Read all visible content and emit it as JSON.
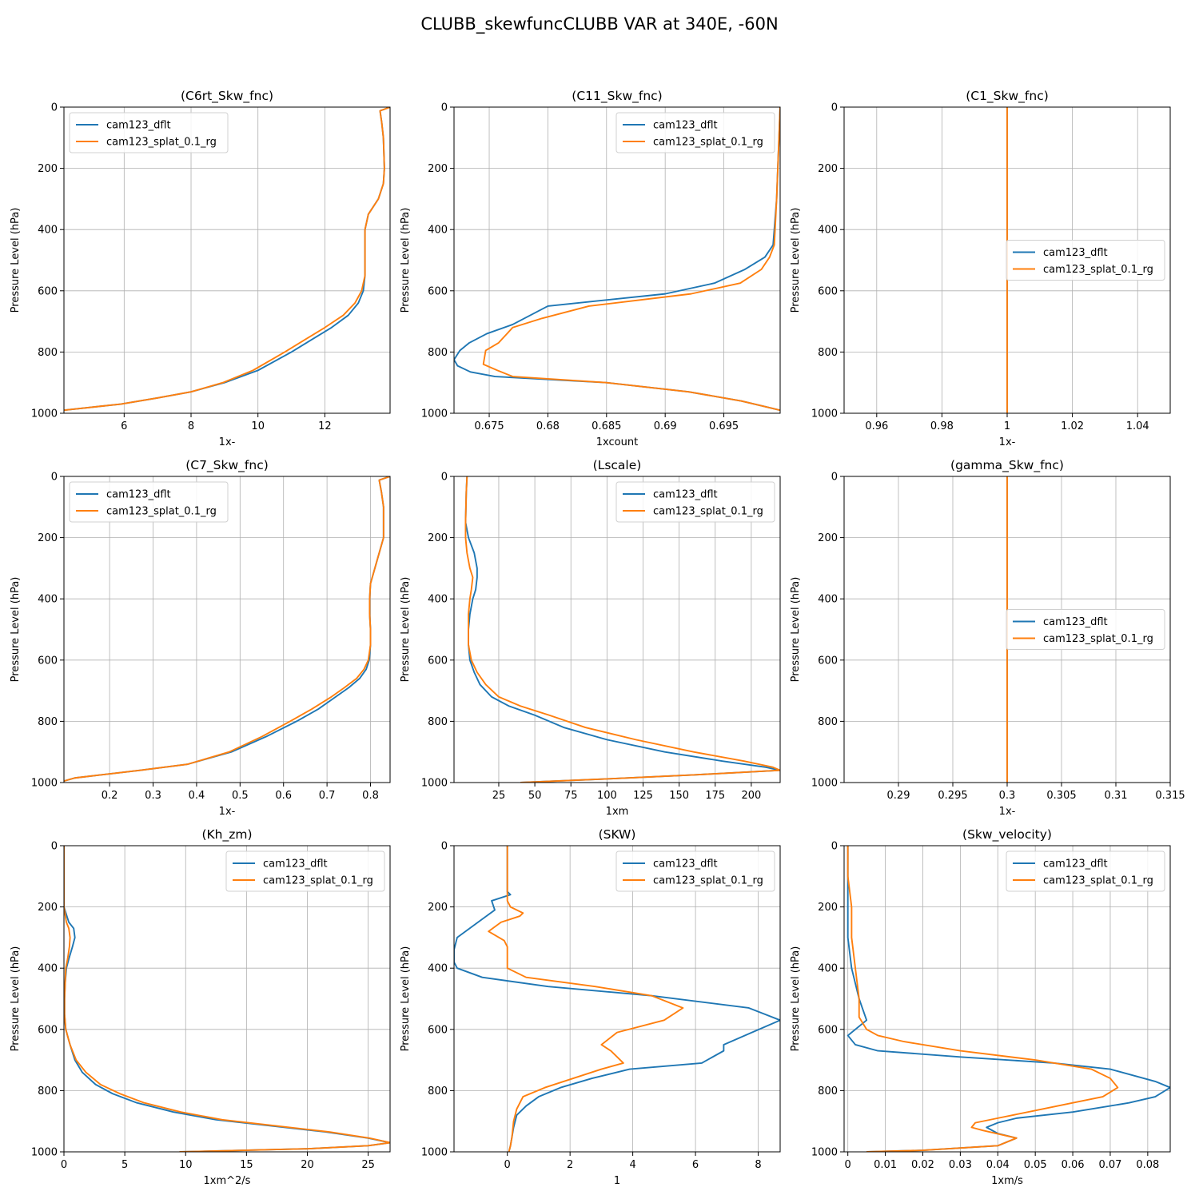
{
  "figure_title": "CLUBB_skewfuncCLUBB VAR at 340E, -60N",
  "colors": {
    "dflt": "#1f77b4",
    "splat": "#ff7f0e",
    "grid": "#b0b0b0"
  },
  "legend_labels": [
    "cam123_dflt",
    "cam123_splat_0.1_rg"
  ],
  "chart_data": [
    {
      "type": "line",
      "title": "(C6rt_Skw_fnc)",
      "xlabel": "1x-",
      "ylabel": "Pressure Level (hPa)",
      "xlim": [
        4.2,
        13.95
      ],
      "ylim": [
        1000,
        0
      ],
      "xticks": [
        6,
        8,
        10,
        12
      ],
      "yticks": [
        0,
        200,
        400,
        600,
        800,
        1000
      ],
      "legend": "upper-left",
      "series": [
        {
          "name": "cam123_dflt",
          "x": [
            13.95,
            13.65,
            13.7,
            13.75,
            13.78,
            13.75,
            13.6,
            13.3,
            13.2,
            13.2,
            13.2,
            13.2,
            13.15,
            13.0,
            12.7,
            12.2,
            11.6,
            11.0,
            10.0,
            9.0,
            8.0,
            7.0,
            5.9,
            4.2
          ],
          "y": [
            0,
            12,
            50,
            100,
            200,
            250,
            300,
            350,
            400,
            450,
            500,
            550,
            600,
            640,
            680,
            720,
            760,
            800,
            860,
            900,
            930,
            950,
            970,
            990
          ]
        },
        {
          "name": "cam123_splat_0.1_rg",
          "x": [
            13.95,
            13.65,
            13.7,
            13.75,
            13.78,
            13.75,
            13.6,
            13.3,
            13.2,
            13.2,
            13.2,
            13.2,
            13.1,
            12.9,
            12.55,
            12.0,
            11.4,
            10.8,
            9.85,
            8.95,
            8.0,
            7.0,
            5.9,
            4.2
          ],
          "y": [
            0,
            12,
            50,
            100,
            200,
            250,
            300,
            350,
            400,
            450,
            500,
            550,
            600,
            640,
            680,
            720,
            760,
            800,
            860,
            900,
            930,
            950,
            970,
            990
          ]
        }
      ]
    },
    {
      "type": "line",
      "title": "(C11_Skw_fnc)",
      "xlabel": "1xcount",
      "ylabel": "Pressure Level (hPa)",
      "xlim": [
        0.672,
        0.6998
      ],
      "ylim": [
        1000,
        0
      ],
      "xticks": [
        0.675,
        0.68,
        0.685,
        0.69,
        0.695
      ],
      "yticks": [
        0,
        200,
        400,
        600,
        800,
        1000
      ],
      "legend": "upper-right",
      "series": [
        {
          "name": "cam123_dflt",
          "x": [
            0.6998,
            0.6997,
            0.6996,
            0.6995,
            0.6992,
            0.6985,
            0.6968,
            0.6942,
            0.69,
            0.68,
            0.677,
            0.6748,
            0.6733,
            0.6725,
            0.672,
            0.6723,
            0.6734,
            0.6755,
            0.685,
            0.692,
            0.6965,
            0.6998
          ],
          "y": [
            0,
            100,
            200,
            300,
            450,
            490,
            530,
            575,
            610,
            650,
            710,
            740,
            770,
            795,
            825,
            845,
            865,
            880,
            900,
            930,
            960,
            990
          ]
        },
        {
          "name": "cam123_splat_0.1_rg",
          "x": [
            0.6998,
            0.6997,
            0.6996,
            0.6995,
            0.6993,
            0.6989,
            0.6982,
            0.6964,
            0.6922,
            0.6835,
            0.6795,
            0.677,
            0.6758,
            0.6747,
            0.6745,
            0.6757,
            0.677,
            0.685,
            0.692,
            0.6965,
            0.6998
          ],
          "y": [
            0,
            100,
            200,
            300,
            450,
            490,
            530,
            575,
            610,
            650,
            690,
            720,
            770,
            795,
            840,
            860,
            880,
            900,
            930,
            960,
            990
          ]
        }
      ]
    },
    {
      "type": "line",
      "title": "(C1_Skw_fnc)",
      "xlabel": "1x-",
      "ylabel": "Pressure Level (hPa)",
      "xlim": [
        0.95,
        1.05
      ],
      "ylim": [
        1000,
        0
      ],
      "xticks": [
        0.96,
        0.98,
        1.0,
        1.02,
        1.04
      ],
      "yticks": [
        0,
        200,
        400,
        600,
        800,
        1000
      ],
      "legend": "center-right",
      "series": [
        {
          "name": "cam123_dflt",
          "x": [
            1.0,
            1.0
          ],
          "y": [
            0,
            1000
          ]
        },
        {
          "name": "cam123_splat_0.1_rg",
          "x": [
            1.0,
            1.0
          ],
          "y": [
            0,
            1000
          ]
        }
      ]
    },
    {
      "type": "line",
      "title": "(C7_Skw_fnc)",
      "xlabel": "1x-",
      "ylabel": "Pressure Level (hPa)",
      "xlim": [
        0.095,
        0.845
      ],
      "ylim": [
        1000,
        0
      ],
      "xticks": [
        0.2,
        0.3,
        0.4,
        0.5,
        0.6,
        0.7,
        0.8
      ],
      "yticks": [
        0,
        200,
        400,
        600,
        800,
        1000
      ],
      "legend": "upper-left",
      "series": [
        {
          "name": "cam123_dflt",
          "x": [
            0.845,
            0.82,
            0.825,
            0.83,
            0.83,
            0.82,
            0.81,
            0.8,
            0.798,
            0.798,
            0.8,
            0.8,
            0.797,
            0.79,
            0.775,
            0.75,
            0.72,
            0.68,
            0.63,
            0.56,
            0.48,
            0.38,
            0.27,
            0.12,
            0.095
          ],
          "y": [
            0,
            12,
            50,
            100,
            200,
            250,
            300,
            350,
            400,
            450,
            500,
            550,
            600,
            630,
            660,
            690,
            720,
            760,
            800,
            850,
            900,
            940,
            960,
            985,
            995
          ]
        },
        {
          "name": "cam123_splat_0.1_rg",
          "x": [
            0.845,
            0.82,
            0.825,
            0.83,
            0.83,
            0.82,
            0.81,
            0.8,
            0.798,
            0.798,
            0.8,
            0.8,
            0.795,
            0.785,
            0.768,
            0.74,
            0.71,
            0.665,
            0.615,
            0.55,
            0.475,
            0.38,
            0.27,
            0.12,
            0.095
          ],
          "y": [
            0,
            12,
            50,
            100,
            200,
            250,
            300,
            350,
            400,
            450,
            500,
            550,
            600,
            630,
            660,
            690,
            720,
            760,
            800,
            850,
            900,
            940,
            960,
            985,
            995
          ]
        }
      ]
    },
    {
      "type": "line",
      "title": "(Lscale)",
      "xlabel": "1xm",
      "ylabel": "Pressure Level (hPa)",
      "xlim": [
        -6,
        220
      ],
      "ylim": [
        1000,
        0
      ],
      "xticks": [
        25,
        50,
        75,
        100,
        125,
        150,
        175,
        200
      ],
      "yticks": [
        0,
        200,
        400,
        600,
        800,
        1000
      ],
      "legend": "upper-right",
      "series": [
        {
          "name": "cam123_dflt",
          "x": [
            3,
            2.5,
            2,
            4,
            8,
            10,
            10,
            9,
            7,
            5,
            4,
            4,
            5,
            8,
            12,
            20,
            32,
            50,
            70,
            100,
            140,
            180,
            210,
            220,
            160,
            100,
            40
          ],
          "y": [
            0,
            50,
            150,
            200,
            250,
            300,
            330,
            370,
            400,
            450,
            500,
            550,
            600,
            640,
            680,
            720,
            750,
            780,
            820,
            860,
            900,
            930,
            950,
            960,
            975,
            988,
            1000
          ]
        },
        {
          "name": "cam123_splat_0.1_rg",
          "x": [
            3,
            2.5,
            2,
            2,
            3,
            5,
            7,
            6,
            5,
            4,
            4,
            4,
            6,
            10,
            16,
            25,
            40,
            60,
            85,
            120,
            160,
            195,
            215,
            220,
            160,
            100,
            40
          ],
          "y": [
            0,
            50,
            150,
            200,
            250,
            300,
            330,
            370,
            400,
            450,
            500,
            550,
            600,
            640,
            680,
            720,
            750,
            780,
            820,
            860,
            900,
            930,
            950,
            960,
            975,
            988,
            1000
          ]
        }
      ]
    },
    {
      "type": "line",
      "title": "(gamma_Skw_fnc)",
      "xlabel": "1x-",
      "ylabel": "Pressure Level (hPa)",
      "xlim": [
        0.285,
        0.315
      ],
      "ylim": [
        1000,
        0
      ],
      "xticks": [
        0.29,
        0.295,
        0.3,
        0.305,
        0.31,
        0.315
      ],
      "yticks": [
        0,
        200,
        400,
        600,
        800,
        1000
      ],
      "legend": "center-right",
      "series": [
        {
          "name": "cam123_dflt",
          "x": [
            0.3,
            0.3
          ],
          "y": [
            0,
            1000
          ]
        },
        {
          "name": "cam123_splat_0.1_rg",
          "x": [
            0.3,
            0.3
          ],
          "y": [
            0,
            1000
          ]
        }
      ]
    },
    {
      "type": "line",
      "title": "(Kh_zm)",
      "xlabel": "1xm^2/s",
      "ylabel": "Pressure Level (hPa)",
      "xlim": [
        0,
        26.8
      ],
      "ylim": [
        1000,
        0
      ],
      "xticks": [
        0,
        5,
        10,
        15,
        20,
        25
      ],
      "yticks": [
        0,
        200,
        400,
        600,
        800,
        1000
      ],
      "legend": "upper-right",
      "series": [
        {
          "name": "cam123_dflt",
          "x": [
            0,
            0,
            0.4,
            0.8,
            0.9,
            0.7,
            0.4,
            0.2,
            0.1,
            0.05,
            0.05,
            0.15,
            0.5,
            0.9,
            1.5,
            2.6,
            4.0,
            6.0,
            9.0,
            12.5,
            17.0,
            21.5,
            25.0,
            26.8,
            25.0,
            20.0,
            9.5
          ],
          "y": [
            0,
            200,
            250,
            270,
            300,
            330,
            370,
            400,
            450,
            500,
            550,
            600,
            650,
            700,
            740,
            780,
            810,
            840,
            870,
            895,
            915,
            935,
            955,
            970,
            980,
            990,
            1000
          ]
        },
        {
          "name": "cam123_splat_0.1_rg",
          "x": [
            0,
            0,
            0.2,
            0.4,
            0.5,
            0.45,
            0.3,
            0.15,
            0.1,
            0.05,
            0.05,
            0.15,
            0.5,
            1.0,
            1.8,
            3.0,
            4.6,
            6.6,
            9.6,
            13.0,
            17.4,
            21.8,
            25.1,
            26.8,
            25.0,
            20.0,
            9.5
          ],
          "y": [
            0,
            200,
            250,
            270,
            300,
            330,
            370,
            400,
            450,
            500,
            550,
            600,
            650,
            700,
            740,
            780,
            810,
            840,
            870,
            895,
            915,
            935,
            955,
            970,
            980,
            990,
            1000
          ]
        }
      ]
    },
    {
      "type": "line",
      "title": "(SKW)",
      "xlabel": "1",
      "ylabel": "Pressure Level (hPa)",
      "xlim": [
        -1.7,
        8.7
      ],
      "ylim": [
        1000,
        0
      ],
      "xticks": [
        0,
        2,
        4,
        6,
        8
      ],
      "yticks": [
        0,
        200,
        400,
        600,
        800,
        1000
      ],
      "legend": "upper-right",
      "series": [
        {
          "name": "cam123_dflt",
          "x": [
            0,
            0,
            0.1,
            -0.5,
            -0.4,
            -0.8,
            -1.2,
            -1.6,
            -1.7,
            -1.7,
            -1.6,
            -0.8,
            1.3,
            4.6,
            7.7,
            8.7,
            7.8,
            6.9,
            6.9,
            6.2,
            3.9,
            2.7,
            1.7,
            1.0,
            0.6,
            0.3,
            0.25,
            0.2,
            0.15,
            0.1,
            0.05
          ],
          "y": [
            0,
            150,
            160,
            180,
            210,
            240,
            270,
            300,
            340,
            380,
            400,
            430,
            460,
            490,
            530,
            570,
            610,
            650,
            670,
            710,
            730,
            760,
            790,
            820,
            850,
            880,
            900,
            920,
            950,
            980,
            1000
          ]
        },
        {
          "name": "cam123_splat_0.1_rg",
          "x": [
            0,
            0,
            0.1,
            0.5,
            0.4,
            -0.2,
            -0.6,
            -0.1,
            0,
            0,
            0.6,
            2.8,
            4.6,
            5.6,
            5.0,
            3.5,
            3.0,
            3.3,
            3.7,
            3.0,
            2.1,
            1.2,
            0.5,
            0.3,
            0.2,
            0.15,
            0.1,
            0.05
          ],
          "y": [
            0,
            180,
            200,
            220,
            230,
            250,
            280,
            310,
            330,
            400,
            430,
            460,
            490,
            530,
            570,
            610,
            650,
            670,
            710,
            730,
            760,
            790,
            820,
            860,
            900,
            950,
            980,
            1000
          ]
        }
      ]
    },
    {
      "type": "line",
      "title": "(Skw_velocity)",
      "xlabel": "1xm/s",
      "ylabel": "Pressure Level (hPa)",
      "xlim": [
        -0.001,
        0.086
      ],
      "ylim": [
        1000,
        0
      ],
      "xticks": [
        0.0,
        0.01,
        0.02,
        0.03,
        0.04,
        0.05,
        0.06,
        0.07,
        0.08
      ],
      "yticks": [
        0,
        200,
        400,
        600,
        800,
        1000
      ],
      "legend": "upper-right",
      "series": [
        {
          "name": "cam123_dflt",
          "x": [
            0.0,
            0.0,
            0.0,
            0.0,
            0.001,
            0.003,
            0.005,
            0.0,
            0.002,
            0.008,
            0.03,
            0.055,
            0.07,
            0.082,
            0.086,
            0.082,
            0.075,
            0.06,
            0.045,
            0.04,
            0.037,
            0.04,
            0.045,
            0.04,
            0.02,
            0.005
          ],
          "y": [
            0,
            100,
            200,
            300,
            400,
            500,
            570,
            620,
            650,
            670,
            690,
            710,
            730,
            770,
            790,
            820,
            840,
            870,
            890,
            905,
            920,
            940,
            955,
            980,
            995,
            1000
          ]
        },
        {
          "name": "cam123_splat_0.1_rg",
          "x": [
            0.0,
            0.0,
            0.001,
            0.001,
            0.002,
            0.003,
            0.003,
            0.005,
            0.008,
            0.015,
            0.03,
            0.05,
            0.065,
            0.07,
            0.072,
            0.068,
            0.06,
            0.05,
            0.04,
            0.034,
            0.033,
            0.036,
            0.045,
            0.04,
            0.02,
            0.005
          ],
          "y": [
            0,
            100,
            200,
            300,
            400,
            500,
            560,
            600,
            620,
            640,
            670,
            700,
            730,
            760,
            790,
            820,
            840,
            865,
            890,
            905,
            920,
            930,
            955,
            980,
            995,
            1000
          ]
        }
      ]
    }
  ]
}
